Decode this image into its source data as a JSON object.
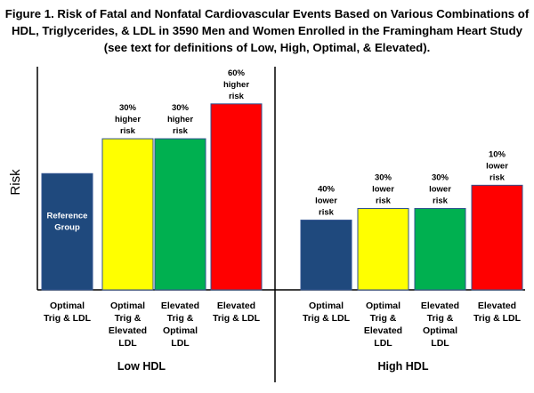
{
  "title_lines": [
    "Figure 1. Risk of Fatal and Nonfatal Cardiovascular Events Based on Various Combinations of",
    "HDL, Triglycerides, & LDL in 3590 Men and Women Enrolled in the Framingham Heart Study",
    "(see text for definitions of Low, High, Optimal, & Elevated)."
  ],
  "colors": {
    "blue": "#1f497d",
    "yellow": "#ffff00",
    "green": "#00b050",
    "red": "#ff0000",
    "axis": "#000000"
  },
  "chart_data": {
    "type": "bar",
    "title": "Figure 1. Risk of Fatal and Nonfatal Cardiovascular Events Based on Various Combinations of HDL, Triglycerides, & LDL in 3590 Men and Women Enrolled in the Framingham Heart Study (see text for definitions of Low, High, Optimal, & Elevated).",
    "ylabel": "Risk",
    "xlabel": "",
    "ylim": [
      0,
      1.92
    ],
    "y_axis_ticks": false,
    "grid": false,
    "reference_label": [
      "Reference",
      "Group"
    ],
    "groups": [
      {
        "name": "Low HDL",
        "bars": [
          {
            "category": [
              "Optimal",
              "Trig & LDL"
            ],
            "value": 1.0,
            "color": "#1f497d",
            "label": []
          },
          {
            "category": [
              "Optimal",
              "Trig &",
              "Elevated",
              "LDL"
            ],
            "value": 1.3,
            "color": "#ffff00",
            "label": [
              "30%",
              "higher",
              "risk"
            ]
          },
          {
            "category": [
              "Elevated",
              "Trig &",
              "Optimal",
              "LDL"
            ],
            "value": 1.3,
            "color": "#00b050",
            "label": [
              "30%",
              "higher",
              "risk"
            ]
          },
          {
            "category": [
              "Elevated",
              "Trig & LDL"
            ],
            "value": 1.6,
            "color": "#ff0000",
            "label": [
              "60%",
              "higher",
              "risk"
            ]
          }
        ]
      },
      {
        "name": "High HDL",
        "bars": [
          {
            "category": [
              "Optimal",
              "Trig & LDL"
            ],
            "value": 0.6,
            "color": "#1f497d",
            "label": [
              "40%",
              "lower",
              "risk"
            ]
          },
          {
            "category": [
              "Optimal",
              "Trig &",
              "Elevated",
              "LDL"
            ],
            "value": 0.7,
            "color": "#ffff00",
            "label": [
              "30%",
              "lower",
              "risk"
            ]
          },
          {
            "category": [
              "Elevated",
              "Trig &",
              "Optimal",
              "LDL"
            ],
            "value": 0.7,
            "color": "#00b050",
            "label": [
              "30%",
              "lower",
              "risk"
            ]
          },
          {
            "category": [
              "Elevated",
              "Trig & LDL"
            ],
            "value": 0.9,
            "color": "#ff0000",
            "label": [
              "10%",
              "lower",
              "risk"
            ]
          }
        ]
      }
    ]
  }
}
